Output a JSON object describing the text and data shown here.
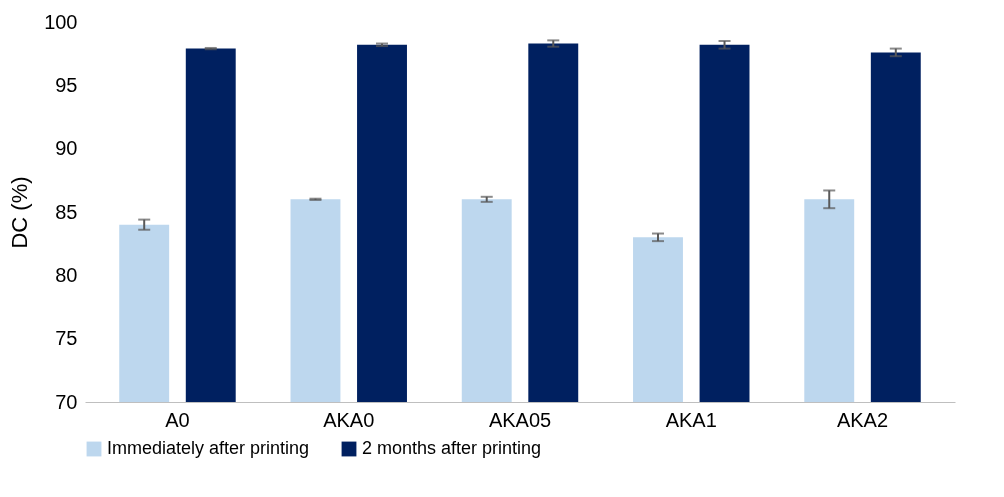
{
  "chart_data": {
    "type": "bar",
    "ylabel": "DC (%)",
    "categories": [
      "A0",
      "AKA0",
      "AKA05",
      "AKA1",
      "AKA2"
    ],
    "series": [
      {
        "name": "Immediately after printing",
        "color": "#bdd7ee",
        "values": [
          84,
          86,
          86,
          83,
          86
        ],
        "errors": [
          0.4,
          0.05,
          0.2,
          0.3,
          0.7
        ]
      },
      {
        "name": "2 months after printing",
        "color": "#002060",
        "values": [
          97.9,
          98.2,
          98.3,
          98.2,
          97.6
        ],
        "errors": [
          0.05,
          0.1,
          0.25,
          0.3,
          0.3
        ]
      }
    ],
    "ylim": [
      70,
      100
    ],
    "yticks": [
      70,
      75,
      80,
      85,
      90,
      95,
      100
    ],
    "grid": false,
    "legend": "bottom"
  }
}
